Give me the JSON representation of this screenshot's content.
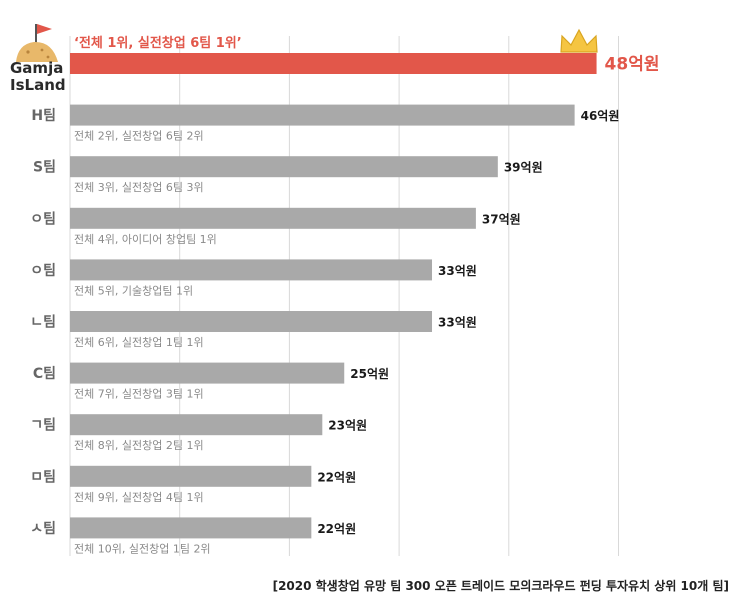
{
  "logo": {
    "line1": "Gamja",
    "line2": "IsLand",
    "colors": {
      "potato": "#e8b86a",
      "flag": "#e2574a"
    }
  },
  "footnote": "[2020 학생창업 유망 팀 300 오픈 트레이드 모의크라우드 펀딩 투자유치 상위 10개 팀]",
  "chart_data": {
    "type": "bar",
    "orientation": "horizontal",
    "title": "",
    "xlabel": "",
    "ylabel": "",
    "xlim": [
      0,
      50
    ],
    "grid": true,
    "unit": "억원",
    "categories": [
      "",
      "H팀",
      "S팀",
      "ㅇ팀",
      "ㅇ팀",
      "ㄴ팀",
      "C팀",
      "ㄱ팀",
      "ㅁ팀",
      "ㅅ팀"
    ],
    "values": [
      48,
      46,
      39,
      37,
      33,
      33,
      25,
      23,
      22,
      22
    ],
    "value_labels": [
      "48억원",
      "46억원",
      "39억원",
      "37억원",
      "33억원",
      "33억원",
      "25억원",
      "23억원",
      "22억원",
      "22억원"
    ],
    "annotations": [
      "‘전체 1위, 실전창업 6팀 1위’",
      "전체 2위, 실전창업 6팀 2위",
      "전체 3위, 실전창업 6팀 3위",
      "전체 4위, 아이디어 창업팀 1위",
      "전체 5위, 기술창업팀 1위",
      "전체 6위, 실전창업 1팀 1위",
      "전체 7위, 실전창업 3팀 1위",
      "전체 8위, 실전창업 2팀 1위",
      "전체 9위, 실전창업 4팀 1위",
      "전체 10위, 실전창업 1팀 2위"
    ],
    "highlight_index": 0,
    "colors": {
      "highlight": "#e2574a",
      "bar": "#a9a9a9",
      "grid": "#d9d9d9",
      "crown": "#f5c542"
    }
  }
}
